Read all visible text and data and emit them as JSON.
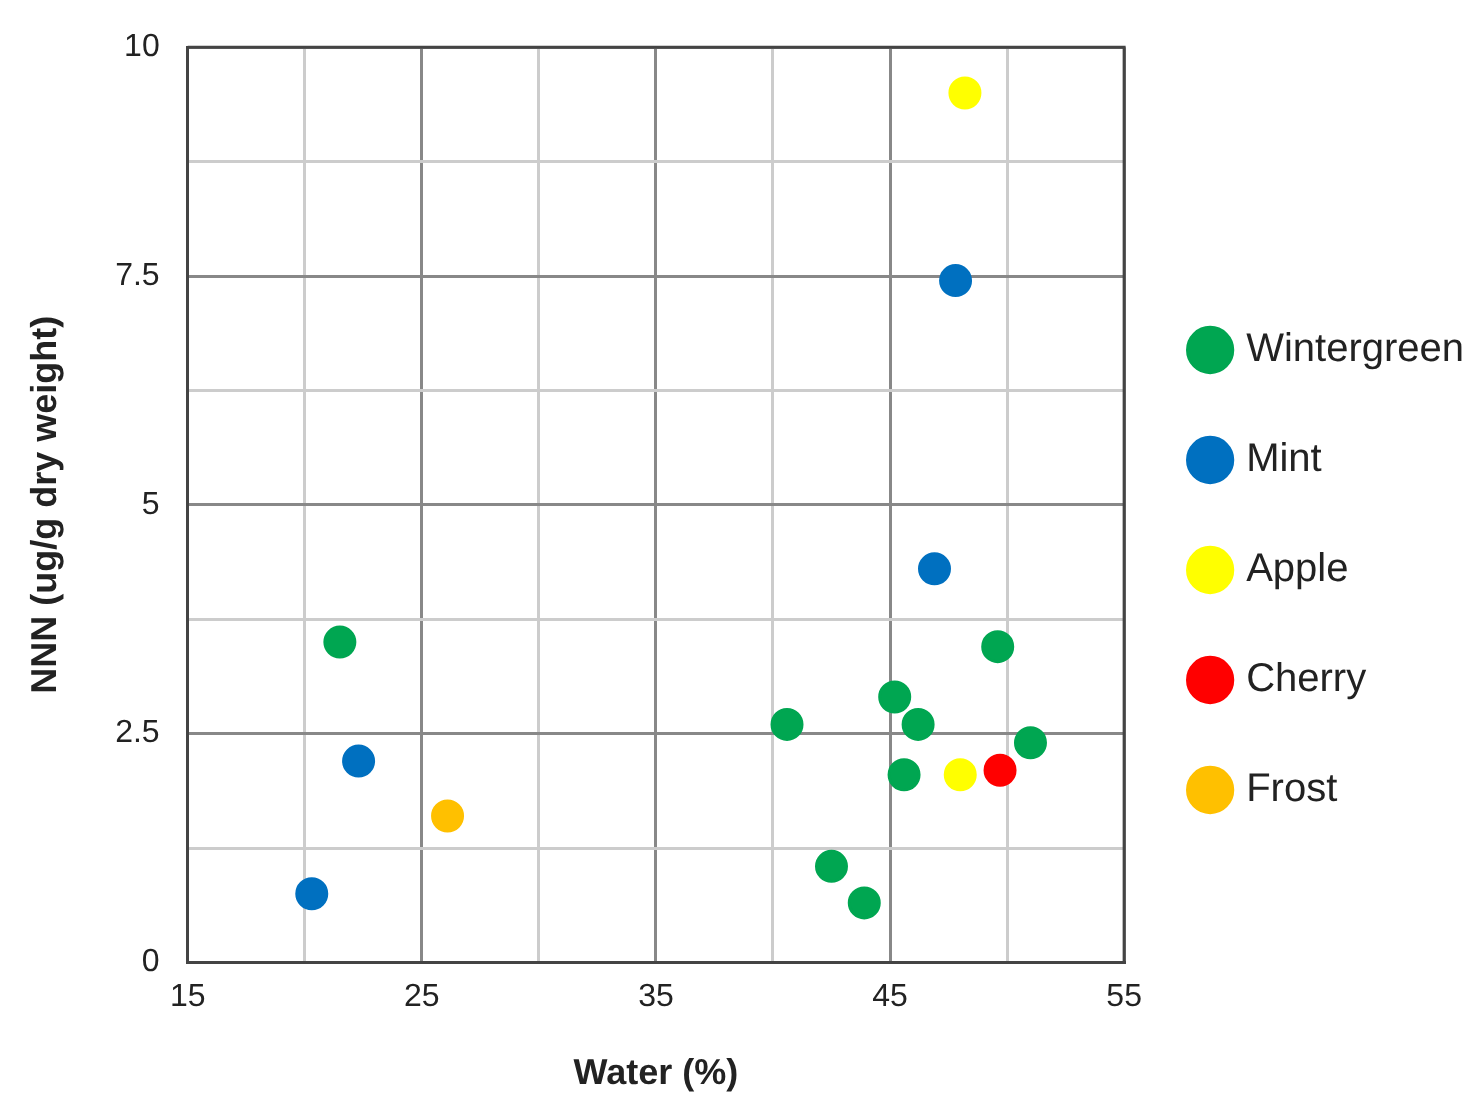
{
  "chart_data": {
    "type": "scatter",
    "xlabel": "Water (%)",
    "ylabel": "NNN (ug/g dry weight)",
    "xlim": [
      15,
      55
    ],
    "xticks": [
      15,
      {
        "value": 20,
        "label": null
      },
      25,
      {
        "value": 30,
        "label": null
      },
      35,
      {
        "value": 40,
        "label": null
      },
      45,
      {
        "value": 50,
        "label": null
      },
      55
    ],
    "ylim": [
      0,
      10
    ],
    "yticks": [
      0,
      {
        "value": 1.25,
        "label": null
      },
      2.5,
      {
        "value": 3.75,
        "label": null
      },
      5,
      {
        "value": 6.25,
        "label": null
      },
      7.5,
      {
        "value": 8.75,
        "label": null
      },
      10
    ],
    "grid": true,
    "legend": "right",
    "marker": "circle",
    "series": [
      {
        "name": "Wintergreen",
        "color": "#00a651",
        "x": [
          21.5,
          40.6,
          45.2,
          46.2,
          45.6,
          42.5,
          43.9,
          49.6,
          51.0
        ],
        "values": [
          3.5,
          2.6,
          2.9,
          2.6,
          2.05,
          1.05,
          0.65,
          3.45,
          2.4
        ]
      },
      {
        "name": "Mint",
        "color": "#0070c0",
        "x": [
          20.3,
          22.3,
          46.9,
          47.8
        ],
        "values": [
          0.75,
          2.2,
          4.3,
          7.45
        ]
      },
      {
        "name": "Apple",
        "color": "#ffff00",
        "x": [
          48.2,
          48.0
        ],
        "values": [
          9.5,
          2.05
        ]
      },
      {
        "name": "Cherry",
        "color": "#ff0000",
        "x": [
          49.7
        ],
        "values": [
          2.1
        ]
      },
      {
        "name": "Frost",
        "color": "#ffc000",
        "x": [
          26.1
        ],
        "values": [
          1.6
        ]
      }
    ]
  }
}
